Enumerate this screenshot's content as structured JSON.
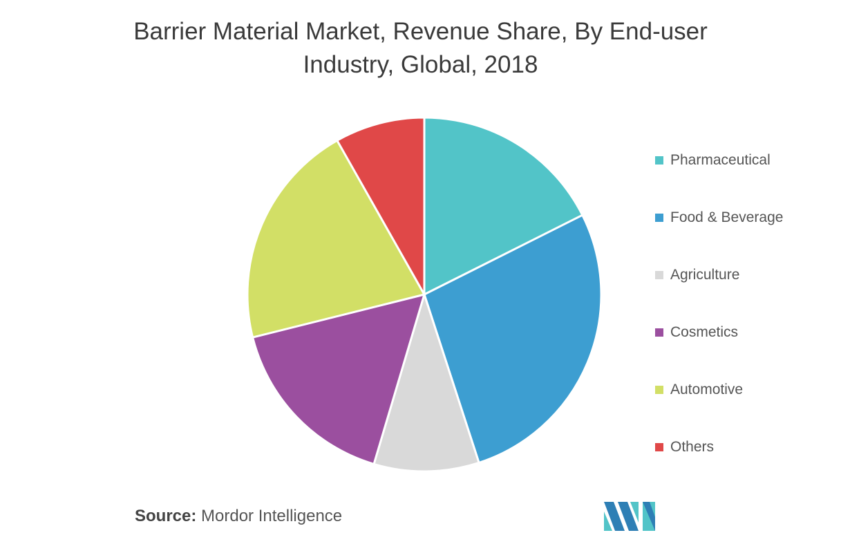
{
  "chart_data": {
    "type": "pie",
    "title_lines": [
      "Barrier Material Market, Revenue Share, By End-user",
      "Industry, Global, 2018"
    ],
    "unit": "percent (estimated)",
    "legend_position": "right",
    "categories": [
      "Pharmaceutical",
      "Food & Beverage",
      "Agriculture",
      "Cosmetics",
      "Automotive",
      "Others"
    ],
    "values": [
      17.6,
      27.4,
      9.6,
      16.5,
      20.7,
      8.2
    ],
    "colors": [
      "#52c4c8",
      "#3d9ed1",
      "#d9d9d9",
      "#9b4f9f",
      "#d2df66",
      "#e04848"
    ]
  },
  "source": {
    "label": "Source:",
    "text": " Mordor Intelligence"
  },
  "logo": {
    "name": "Mordor Intelligence logo",
    "colors": [
      "#2e7fb5",
      "#52c4c8"
    ]
  }
}
